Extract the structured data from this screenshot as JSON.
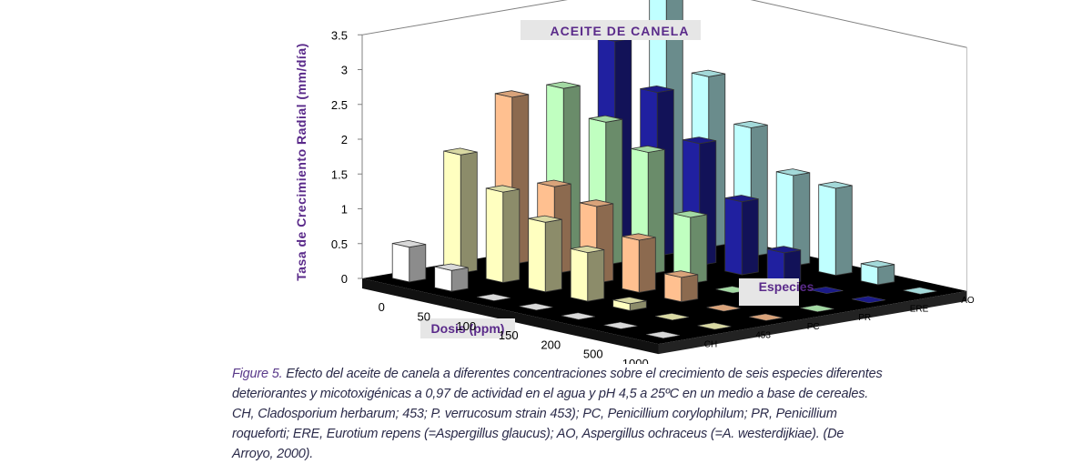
{
  "chart_data": {
    "type": "bar",
    "subtype": "3d-bar",
    "title": "ACEITE DE CANELA",
    "xlabel": "Dosis (ppm)",
    "ylabel": "Tasa de Crecimiento Radial (mm/día)",
    "zlabel": "Especies",
    "categories": [
      "0",
      "50",
      "100",
      "150",
      "200",
      "500",
      "1000"
    ],
    "y_ticks": [
      "0",
      "0.5",
      "1",
      "1.5",
      "2",
      "2.5",
      "3",
      "3.5"
    ],
    "ylim": [
      0,
      3.5
    ],
    "grid": false,
    "series": [
      {
        "name": "CH",
        "color": "#ffffff",
        "values": [
          0.5,
          0.3,
          0,
          0,
          0,
          0,
          0
        ]
      },
      {
        "name": "453",
        "color": "#ffffc0",
        "values": [
          1.7,
          1.3,
          1.0,
          0.7,
          0.1,
          0,
          0
        ]
      },
      {
        "name": "PC",
        "color": "#ffc090",
        "values": [
          2.4,
          1.25,
          1.1,
          0.75,
          0.35,
          0,
          0
        ]
      },
      {
        "name": "PR",
        "color": "#c0ffc0",
        "values": [
          2.4,
          2.05,
          1.75,
          0.95,
          0,
          0,
          0
        ]
      },
      {
        "name": "ERE",
        "color": "#2020a0",
        "values": [
          2.95,
          2.35,
          1.75,
          1.05,
          0.45,
          0,
          0
        ]
      },
      {
        "name": "AO",
        "color": "#c0ffff",
        "values": [
          3.5,
          2.45,
          1.85,
          1.3,
          1.25,
          0.25,
          0
        ]
      }
    ],
    "colors": {
      "title_text": "#5a2a8a",
      "label_box": "#e6e6e6",
      "floor": "#000000"
    }
  },
  "caption": {
    "label": "Figure 5.",
    "text": "Efecto del aceite de canela a diferentes concentraciones sobre el crecimiento de seis especies diferentes deteriorantes y micotoxigénicas a 0,97 de actividad en el agua y pH 4,5 a 25ºC en un medio a base de cereales. CH, Cladosporium herbarum; 453; P. verrucosum strain 453); PC, Penicillium corylophilum; PR, Penicillium roqueforti; ERE, Eurotium repens (=Aspergillus glaucus); AO, Aspergillus ochraceus (=A. westerdijkiae). (De Arroyo, 2000)."
  }
}
